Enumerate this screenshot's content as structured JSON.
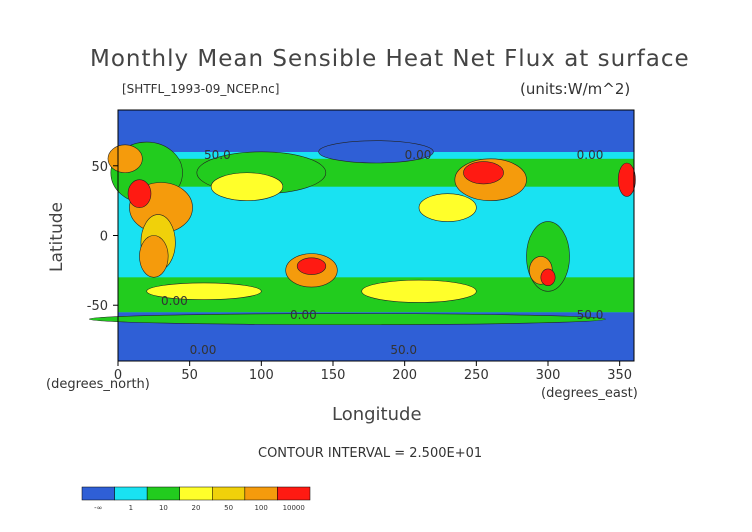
{
  "chart_data": {
    "type": "heatmap",
    "title": "Monthly Mean Sensible Heat Net Flux at surface",
    "source_file": "[SHTFL_1993-09_NCEP.nc]",
    "units": "(units:W/m^2)",
    "xlabel": "Longitude",
    "ylabel": "Latitude",
    "x_unit_note": "(degrees_east)",
    "y_unit_note": "(degrees_north)",
    "xlim": [
      0,
      360
    ],
    "ylim": [
      -90,
      90
    ],
    "x_ticks": [
      0,
      50,
      100,
      150,
      200,
      250,
      300,
      350
    ],
    "y_ticks": [
      50,
      0,
      -50
    ],
    "contour_interval_text": "CONTOUR INTERVAL = 2.500E+01",
    "contour_labels": [
      "50.0",
      "0.00",
      "0.00",
      "0.00",
      "0.00",
      "50.0",
      "0.00",
      "50.0"
    ],
    "colorbar": {
      "bin_edges": [
        "-∞",
        "1",
        "10",
        "20",
        "50",
        "100",
        "10000"
      ],
      "colors": [
        "#2f5fd6",
        "#19e2f2",
        "#22cc1e",
        "#ffff2a",
        "#f0d10a",
        "#f59b0c",
        "#ff1a12"
      ]
    },
    "regions_note": "global field: ocean mostly cyan/blue, subtropical land and Australia/Sahara high (orange-red)"
  }
}
